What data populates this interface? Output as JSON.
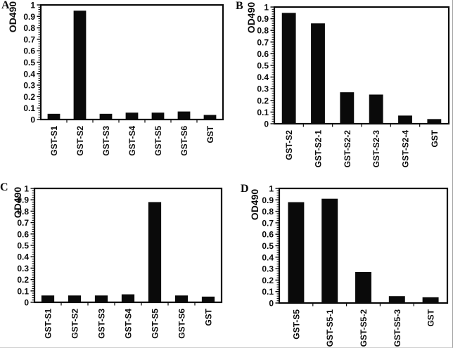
{
  "colors": {
    "bar": "#0a0a0a",
    "axis": "#0a0a0a",
    "background": "#ffffff",
    "scan_edge": "#9e9e9e"
  },
  "chart_data": [
    {
      "type": "bar",
      "panel": "A",
      "ylabel": "OD490",
      "xlabel": "",
      "categories": [
        "GST-S1",
        "GST-S2",
        "GST-S3",
        "GST-S4",
        "GST-S5",
        "GST-S6",
        "GST"
      ],
      "values": [
        0.05,
        0.95,
        0.05,
        0.06,
        0.06,
        0.07,
        0.04
      ],
      "ylim": [
        0,
        1
      ],
      "yticks": [
        0,
        0.1,
        0.2,
        0.3,
        0.4,
        0.5,
        0.6,
        0.7,
        0.8,
        0.9,
        1
      ],
      "ytick_labels": [
        "0",
        "0.1",
        "0.2",
        "0.3",
        "0.4",
        "0.5",
        "0.6",
        "0.7",
        "0.8",
        "0.9",
        "1"
      ],
      "grid": false,
      "legend": null,
      "bar_color": "#0a0a0a"
    },
    {
      "type": "bar",
      "panel": "B",
      "ylabel": "OD490",
      "xlabel": "",
      "categories": [
        "GST-S2",
        "GST-S2-1",
        "GST-S2-2",
        "GST-S2-3",
        "GST-S2-4",
        "GST"
      ],
      "values": [
        0.95,
        0.86,
        0.27,
        0.25,
        0.07,
        0.04
      ],
      "ylim": [
        0,
        1
      ],
      "yticks": [
        0,
        0.1,
        0.2,
        0.3,
        0.4,
        0.5,
        0.6,
        0.7,
        0.8,
        0.9,
        1
      ],
      "ytick_labels": [
        "0",
        "0.1",
        "0.2",
        "0.3",
        "0.4",
        "0.5",
        "0.6",
        "0.7",
        "0.8",
        "0.9",
        "1"
      ],
      "grid": false,
      "legend": null,
      "bar_color": "#0a0a0a"
    },
    {
      "type": "bar",
      "panel": "C",
      "ylabel": "OD490",
      "xlabel": "",
      "categories": [
        "GST-S1",
        "GST-S2",
        "GST-S3",
        "GST-S4",
        "GST-S5",
        "GST-S6",
        "GST"
      ],
      "values": [
        0.06,
        0.06,
        0.06,
        0.07,
        0.88,
        0.06,
        0.05
      ],
      "ylim": [
        0,
        1
      ],
      "yticks": [
        0,
        0.1,
        0.2,
        0.3,
        0.4,
        0.5,
        0.6,
        0.7,
        0.8,
        0.9,
        1
      ],
      "ytick_labels": [
        "0",
        "0.1",
        "0.2",
        "0.3",
        "0.4",
        "0.5",
        "0.6",
        "0.7",
        "0.8",
        "0.9",
        "1"
      ],
      "grid": false,
      "legend": null,
      "bar_color": "#0a0a0a"
    },
    {
      "type": "bar",
      "panel": "D",
      "ylabel": "OD490",
      "xlabel": "",
      "categories": [
        "GST-S5",
        "GST-S5-1",
        "GST-S5-2",
        "GST-S5-3",
        "GST"
      ],
      "values": [
        0.88,
        0.91,
        0.27,
        0.06,
        0.05
      ],
      "ylim": [
        0,
        1
      ],
      "yticks": [
        0,
        0.1,
        0.2,
        0.3,
        0.4,
        0.5,
        0.6,
        0.7,
        0.8,
        0.9,
        1
      ],
      "ytick_labels": [
        "0",
        "0.1",
        "0.2",
        "0.3",
        "0.4",
        "0.5",
        "0.6",
        "0.7",
        "0.8",
        "0.9",
        "1"
      ],
      "grid": false,
      "legend": null,
      "bar_color": "#0a0a0a"
    }
  ]
}
